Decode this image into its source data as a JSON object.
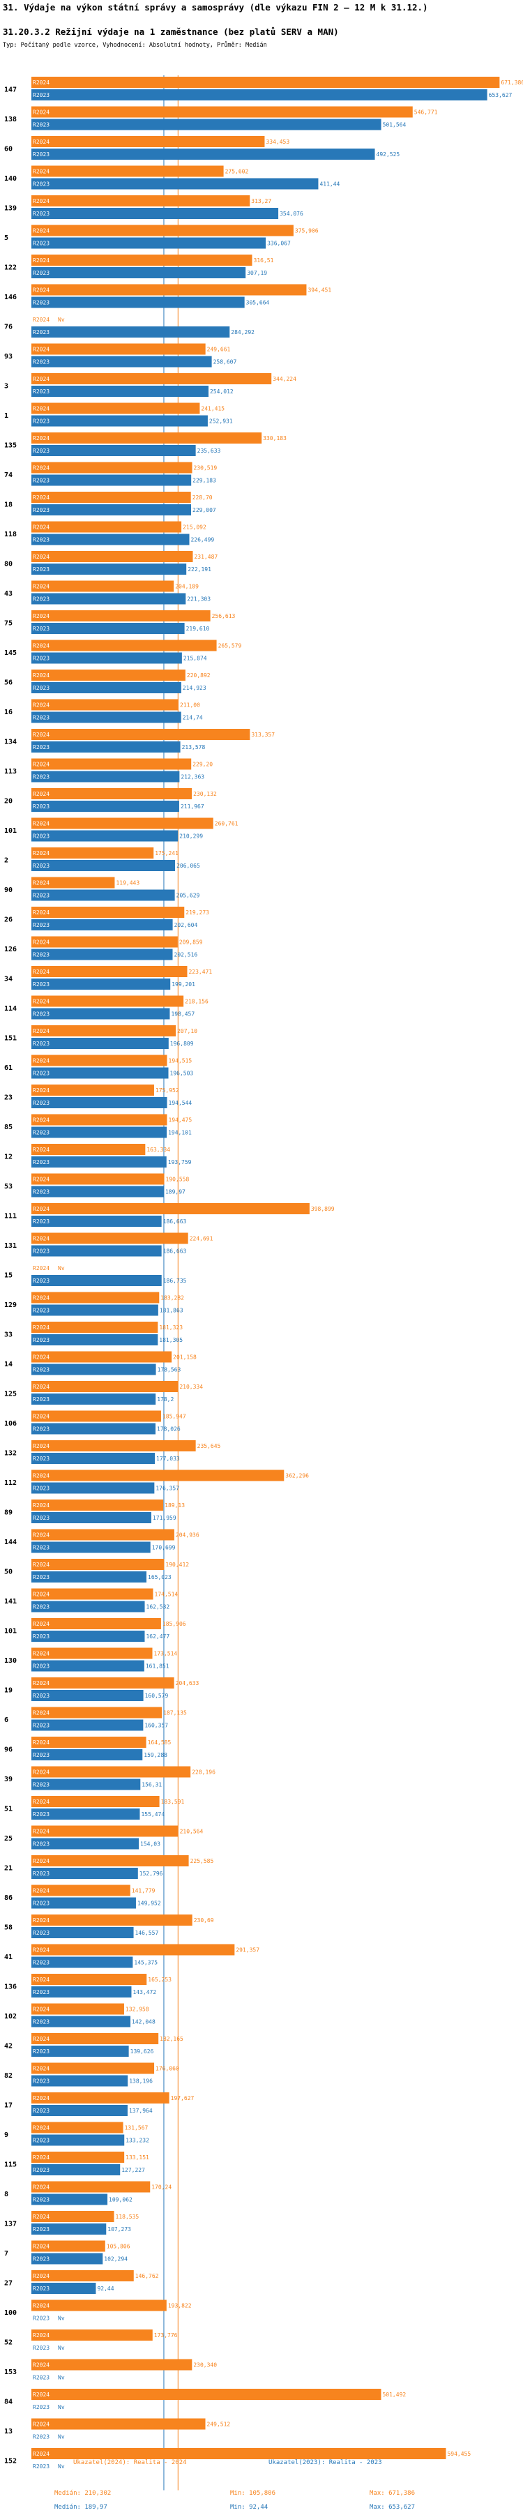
{
  "header": {
    "title": "31. Výdaje na výkon státní správy a samosprávy (dle výkazu FIN 2 – 12 M k 31.12.)",
    "subtitle": "31.20.3.2 Režijní výdaje na 1 zaměstnance (bez platů SERV a MAN)",
    "note": "Typ: Počítaný podle vzorce, Vyhodnocení: Absolutní hodnoty, Průměr: Medián"
  },
  "colors": {
    "r2024": "#f7841e",
    "r2023": "#2878b8",
    "median2024": "#f7841e",
    "median2023": "#2878b8"
  },
  "chart_data": {
    "type": "bar",
    "orientation": "horizontal",
    "series_names": [
      "R2024",
      "R2023"
    ],
    "xlim": [
      0,
      700000
    ],
    "median_2024": 210302,
    "median_2023": 189970,
    "na_label": "Nv",
    "groups": [
      {
        "id": "147",
        "r2024": 671386,
        "r2024_label": "671,386",
        "r2023": 653627,
        "r2023_label": "653,627"
      },
      {
        "id": "138",
        "r2024": 546771,
        "r2024_label": "546,771",
        "r2023": 501564,
        "r2023_label": "501,564"
      },
      {
        "id": "60",
        "r2024": 334453,
        "r2024_label": "334,453",
        "r2023": 492525,
        "r2023_label": "492,525"
      },
      {
        "id": "140",
        "r2024": 275602,
        "r2024_label": "275,602",
        "r2023": 411440,
        "r2023_label": "411,44"
      },
      {
        "id": "139",
        "r2024": 313270,
        "r2024_label": "313,27",
        "r2023": 354076,
        "r2023_label": "354,076"
      },
      {
        "id": "5",
        "r2024": 375906,
        "r2024_label": "375,906",
        "r2023": 336067,
        "r2023_label": "336,067"
      },
      {
        "id": "122",
        "r2024": 316510,
        "r2024_label": "316,51",
        "r2023": 307190,
        "r2023_label": "307,19"
      },
      {
        "id": "146",
        "r2024": 394451,
        "r2024_label": "394,451",
        "r2023": 305664,
        "r2023_label": "305,664"
      },
      {
        "id": "76",
        "r2024": null,
        "r2024_label": "Nv",
        "r2023": 284292,
        "r2023_label": "284,292"
      },
      {
        "id": "93",
        "r2024": 249661,
        "r2024_label": "249,661",
        "r2023": 258607,
        "r2023_label": "258,607"
      },
      {
        "id": "3",
        "r2024": 344224,
        "r2024_label": "344,224",
        "r2023": 254012,
        "r2023_label": "254,012"
      },
      {
        "id": "1",
        "r2024": 241415,
        "r2024_label": "241,415",
        "r2023": 252931,
        "r2023_label": "252,931"
      },
      {
        "id": "135",
        "r2024": 330183,
        "r2024_label": "330,183",
        "r2023": 235633,
        "r2023_label": "235,633"
      },
      {
        "id": "74",
        "r2024": 230519,
        "r2024_label": "230,519",
        "r2023": 229183,
        "r2023_label": "229,183"
      },
      {
        "id": "18",
        "r2024": 228700,
        "r2024_label": "228,70",
        "r2023": 229007,
        "r2023_label": "229,007"
      },
      {
        "id": "118",
        "r2024": 215092,
        "r2024_label": "215,092",
        "r2023": 226499,
        "r2023_label": "226,499"
      },
      {
        "id": "80",
        "r2024": 231487,
        "r2024_label": "231,487",
        "r2023": 222191,
        "r2023_label": "222,191"
      },
      {
        "id": "43",
        "r2024": 204189,
        "r2024_label": "204,189",
        "r2023": 221303,
        "r2023_label": "221,303"
      },
      {
        "id": "75",
        "r2024": 256613,
        "r2024_label": "256,613",
        "r2023": 219610,
        "r2023_label": "219,610"
      },
      {
        "id": "145",
        "r2024": 265579,
        "r2024_label": "265,579",
        "r2023": 215874,
        "r2023_label": "215,874"
      },
      {
        "id": "56",
        "r2024": 220892,
        "r2024_label": "220,892",
        "r2023": 214923,
        "r2023_label": "214,923"
      },
      {
        "id": "16",
        "r2024": 211000,
        "r2024_label": "211,00",
        "r2023": 214740,
        "r2023_label": "214,74"
      },
      {
        "id": "134",
        "r2024": 313357,
        "r2024_label": "313,357",
        "r2023": 213578,
        "r2023_label": "213,578"
      },
      {
        "id": "113",
        "r2024": 229200,
        "r2024_label": "229,20",
        "r2023": 212363,
        "r2023_label": "212,363"
      },
      {
        "id": "20",
        "r2024": 230132,
        "r2024_label": "230,132",
        "r2023": 211967,
        "r2023_label": "211,967"
      },
      {
        "id": "101",
        "r2024": 260761,
        "r2024_label": "260,761",
        "r2023": 210299,
        "r2023_label": "210,299"
      },
      {
        "id": "2",
        "r2024": 175241,
        "r2024_label": "175,241",
        "r2023": 206065,
        "r2023_label": "206,065"
      },
      {
        "id": "90",
        "r2024": 119443,
        "r2024_label": "119,443",
        "r2023": 205629,
        "r2023_label": "205,629"
      },
      {
        "id": "26",
        "r2024": 219273,
        "r2024_label": "219,273",
        "r2023": 202604,
        "r2023_label": "202,604"
      },
      {
        "id": "126",
        "r2024": 209859,
        "r2024_label": "209,859",
        "r2023": 202516,
        "r2023_label": "202,516"
      },
      {
        "id": "34",
        "r2024": 223471,
        "r2024_label": "223,471",
        "r2023": 199201,
        "r2023_label": "199,201"
      },
      {
        "id": "114",
        "r2024": 218156,
        "r2024_label": "218,156",
        "r2023": 198457,
        "r2023_label": "198,457"
      },
      {
        "id": "151",
        "r2024": 207100,
        "r2024_label": "207,10",
        "r2023": 196809,
        "r2023_label": "196,809"
      },
      {
        "id": "61",
        "r2024": 194515,
        "r2024_label": "194,515",
        "r2023": 196503,
        "r2023_label": "196,503"
      },
      {
        "id": "23",
        "r2024": 175952,
        "r2024_label": "175,952",
        "r2023": 194544,
        "r2023_label": "194,544"
      },
      {
        "id": "85",
        "r2024": 194475,
        "r2024_label": "194,475",
        "r2023": 194101,
        "r2023_label": "194,101"
      },
      {
        "id": "12",
        "r2024": 163334,
        "r2024_label": "163,334",
        "r2023": 193759,
        "r2023_label": "193,759"
      },
      {
        "id": "53",
        "r2024": 190558,
        "r2024_label": "190,558",
        "r2023": 189970,
        "r2023_label": "189,97"
      },
      {
        "id": "111",
        "r2024": 398899,
        "r2024_label": "398,899",
        "r2023": 186663,
        "r2023_label": "186,663"
      },
      {
        "id": "131",
        "r2024": 224691,
        "r2024_label": "224,691",
        "r2023": 186663,
        "r2023_label": "186,663"
      },
      {
        "id": "15",
        "r2024": null,
        "r2024_label": "Nv",
        "r2023": 186735,
        "r2023_label": "186,735"
      },
      {
        "id": "129",
        "r2024": 183282,
        "r2024_label": "183,282",
        "r2023": 181863,
        "r2023_label": "181,863"
      },
      {
        "id": "33",
        "r2024": 181323,
        "r2024_label": "181,323",
        "r2023": 181305,
        "r2023_label": "181,305"
      },
      {
        "id": "14",
        "r2024": 201158,
        "r2024_label": "201,158",
        "r2023": 178563,
        "r2023_label": "178,563"
      },
      {
        "id": "125",
        "r2024": 210334,
        "r2024_label": "210,334",
        "r2023": 178200,
        "r2023_label": "178,2"
      },
      {
        "id": "106",
        "r2024": 185947,
        "r2024_label": "185,947",
        "r2023": 178026,
        "r2023_label": "178,026"
      },
      {
        "id": "132",
        "r2024": 235645,
        "r2024_label": "235,645",
        "r2023": 177033,
        "r2023_label": "177,033"
      },
      {
        "id": "112",
        "r2024": 362296,
        "r2024_label": "362,296",
        "r2023": 176357,
        "r2023_label": "176,357"
      },
      {
        "id": "89",
        "r2024": 189130,
        "r2024_label": "189,13",
        "r2023": 171959,
        "r2023_label": "171,959"
      },
      {
        "id": "144",
        "r2024": 204936,
        "r2024_label": "204,936",
        "r2023": 170699,
        "r2023_label": "170,699"
      },
      {
        "id": "50",
        "r2024": 190412,
        "r2024_label": "190,412",
        "r2023": 165023,
        "r2023_label": "165,023"
      },
      {
        "id": "141",
        "r2024": 174514,
        "r2024_label": "174,514",
        "r2023": 162532,
        "r2023_label": "162,532"
      },
      {
        "id": "101b",
        "label": "101",
        "r2024": 185906,
        "r2024_label": "185,906",
        "r2023": 162477,
        "r2023_label": "162,477"
      },
      {
        "id": "130",
        "r2024": 173514,
        "r2024_label": "173,514",
        "r2023": 161851,
        "r2023_label": "161,851"
      },
      {
        "id": "19",
        "r2024": 204633,
        "r2024_label": "204,633",
        "r2023": 160579,
        "r2023_label": "160,579"
      },
      {
        "id": "6",
        "r2024": 187135,
        "r2024_label": "187,135",
        "r2023": 160357,
        "r2023_label": "160,357"
      },
      {
        "id": "96",
        "r2024": 164585,
        "r2024_label": "164,585",
        "r2023": 159288,
        "r2023_label": "159,288"
      },
      {
        "id": "39",
        "r2024": 228196,
        "r2024_label": "228,196",
        "r2023": 156310,
        "r2023_label": "156,31"
      },
      {
        "id": "51",
        "r2024": 183591,
        "r2024_label": "183,591",
        "r2023": 155474,
        "r2023_label": "155,474"
      },
      {
        "id": "25",
        "r2024": 210564,
        "r2024_label": "210,564",
        "r2023": 154030,
        "r2023_label": "154,03"
      },
      {
        "id": "21",
        "r2024": 225585,
        "r2024_label": "225,585",
        "r2023": 152796,
        "r2023_label": "152,796"
      },
      {
        "id": "86",
        "r2024": 141779,
        "r2024_label": "141,779",
        "r2023": 149952,
        "r2023_label": "149,952"
      },
      {
        "id": "58",
        "r2024": 230690,
        "r2024_label": "230,69",
        "r2023": 146557,
        "r2023_label": "146,557"
      },
      {
        "id": "41",
        "r2024": 291357,
        "r2024_label": "291,357",
        "r2023": 145375,
        "r2023_label": "145,375"
      },
      {
        "id": "136",
        "r2024": 165253,
        "r2024_label": "165,253",
        "r2023": 143472,
        "r2023_label": "143,472"
      },
      {
        "id": "102",
        "r2024": 132958,
        "r2024_label": "132,958",
        "r2023": 142048,
        "r2023_label": "142,048"
      },
      {
        "id": "42",
        "r2024": 182165,
        "r2024_label": "182,165",
        "r2023": 139626,
        "r2023_label": "139,626"
      },
      {
        "id": "82",
        "r2024": 176060,
        "r2024_label": "176,060",
        "r2023": 138196,
        "r2023_label": "138,196"
      },
      {
        "id": "17",
        "r2024": 197627,
        "r2024_label": "197,627",
        "r2023": 137964,
        "r2023_label": "137,964"
      },
      {
        "id": "9",
        "r2024": 131567,
        "r2024_label": "131,567",
        "r2023": 133232,
        "r2023_label": "133,232"
      },
      {
        "id": "115",
        "r2024": 133151,
        "r2024_label": "133,151",
        "r2023": 127227,
        "r2023_label": "127,227"
      },
      {
        "id": "8",
        "r2024": 170240,
        "r2024_label": "170,24",
        "r2023": 109062,
        "r2023_label": "109,062"
      },
      {
        "id": "137",
        "r2024": 118535,
        "r2024_label": "118,535",
        "r2023": 107273,
        "r2023_label": "107,273"
      },
      {
        "id": "7",
        "r2024": 105806,
        "r2024_label": "105,806",
        "r2023": 102294,
        "r2023_label": "102,294"
      },
      {
        "id": "27",
        "r2024": 146762,
        "r2024_label": "146,762",
        "r2023": 92440,
        "r2023_label": "92,44"
      },
      {
        "id": "100",
        "r2024": 193822,
        "r2024_label": "193,822",
        "r2023": null,
        "r2023_label": "Nv"
      },
      {
        "id": "52",
        "r2024": 173776,
        "r2024_label": "173,776",
        "r2023": null,
        "r2023_label": "Nv"
      },
      {
        "id": "153",
        "r2024": 230340,
        "r2024_label": "230,340",
        "r2023": null,
        "r2023_label": "Nv"
      },
      {
        "id": "84",
        "r2024": 501492,
        "r2024_label": "501,492",
        "r2023": null,
        "r2023_label": "Nv"
      },
      {
        "id": "13",
        "r2024": 249512,
        "r2024_label": "249,512",
        "r2023": null,
        "r2023_label": "Nv"
      },
      {
        "id": "152",
        "r2024": 594455,
        "r2024_label": "594,455",
        "r2023": null,
        "r2023_label": "Nv"
      }
    ]
  },
  "legend": {
    "left_title": "Ukazatel(2024): Realita - 2024",
    "left_median": "Medián: 210,302",
    "left_min": "Min: 105,806",
    "left_max": "Max: 671,386",
    "right_title": "Ukazatel(2023): Realita - 2023",
    "right_median": "Medián: 189,97",
    "right_min": "Min: 92,44",
    "right_max": "Max: 653,627"
  }
}
